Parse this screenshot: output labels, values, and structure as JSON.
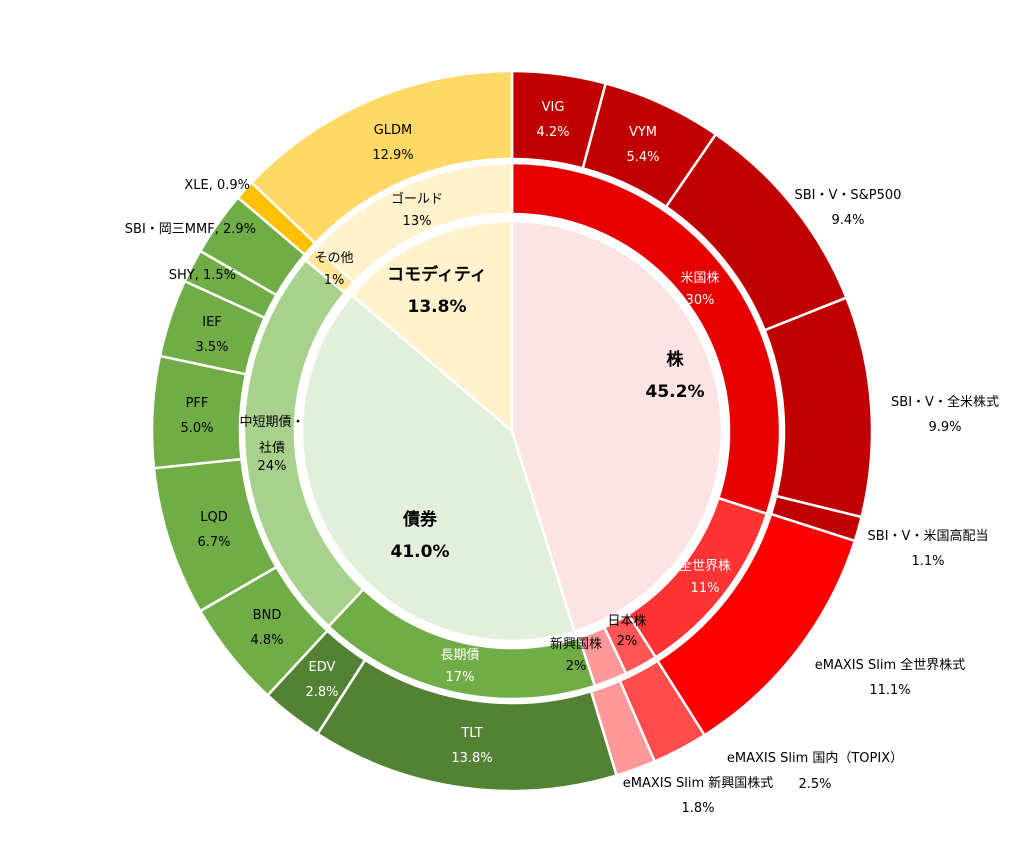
{
  "chart_data": {
    "type": "sunburst-donut",
    "title": "",
    "rings": {
      "inner": [
        {
          "name": "株",
          "value": 45.2,
          "label": "45.2%",
          "color": "#fde4e4",
          "text_color": "#000000"
        },
        {
          "name": "債券",
          "value": 41.0,
          "label": "41.0%",
          "color": "#e2efda",
          "text_color": "#000000"
        },
        {
          "name": "コモディティ",
          "value": 13.8,
          "label": "13.8%",
          "color": "#fff2cc",
          "text_color": "#000000"
        }
      ],
      "middle": [
        {
          "name": "米国株",
          "value": 30,
          "label": "30%",
          "color": "#e60000",
          "text_color": "#ffffff"
        },
        {
          "name": "全世界株",
          "value": 11,
          "label": "11%",
          "color": "#ff3333",
          "text_color": "#ffffff"
        },
        {
          "name": "日本株",
          "value": 2,
          "label": "2%",
          "color": "#ff5555",
          "text_color": "#000000"
        },
        {
          "name": "新興国株",
          "value": 2,
          "label": "2%",
          "color": "#ff9999",
          "text_color": "#000000"
        },
        {
          "name": "長期債",
          "value": 17,
          "label": "17%",
          "color": "#70ad47",
          "text_color": "#ffffff"
        },
        {
          "name": "中短期債・社債",
          "lines": [
            "中短期債・",
            "社債"
          ],
          "value": 24,
          "label": "24%",
          "color": "#a9d18e",
          "text_color": "#000000"
        },
        {
          "name": "その他",
          "value": 1,
          "label": "1%",
          "color": "#ffe699",
          "text_color": "#000000"
        },
        {
          "name": "ゴールド",
          "value": 13,
          "label": "13%",
          "color": "#fff2cc",
          "text_color": "#000000"
        }
      ],
      "outer": [
        {
          "name": "VIG",
          "value": 4.2,
          "label": "4.2%",
          "color": "#c00000"
        },
        {
          "name": "VYM",
          "value": 5.4,
          "label": "5.4%",
          "color": "#c00000"
        },
        {
          "name": "SBI・V・S&P500",
          "value": 9.4,
          "label": "9.4%",
          "color": "#c00000"
        },
        {
          "name": "SBI・V・全米株式",
          "value": 9.9,
          "label": "9.9%",
          "color": "#c00000"
        },
        {
          "name": "SBI・V・米国高配当",
          "value": 1.1,
          "label": "1.1%",
          "color": "#c00000"
        },
        {
          "name": "eMAXIS Slim 全世界株式",
          "value": 11.1,
          "label": "11.1%",
          "color": "#ff0000"
        },
        {
          "name": "eMAXIS Slim 国内（TOPIX）",
          "value": 2.5,
          "label": "2.5%",
          "color": "#ff4d4d"
        },
        {
          "name": "eMAXIS Slim 新興国株式",
          "value": 1.8,
          "label": "1.8%",
          "color": "#ff9999"
        },
        {
          "name": "TLT",
          "value": 13.8,
          "label": "13.8%",
          "color": "#548235"
        },
        {
          "name": "EDV",
          "value": 2.8,
          "label": "2.8%",
          "color": "#548235"
        },
        {
          "name": "BND",
          "value": 4.8,
          "label": "4.8%",
          "color": "#70ad47"
        },
        {
          "name": "LQD",
          "value": 6.7,
          "label": "6.7%",
          "color": "#70ad47"
        },
        {
          "name": "PFF",
          "value": 5.0,
          "label": "5.0%",
          "color": "#70ad47"
        },
        {
          "name": "IEF",
          "value": 3.5,
          "label": "3.5%",
          "color": "#70ad47"
        },
        {
          "name": "SHY",
          "value": 1.5,
          "label": "SHY, 1.5%",
          "color": "#70ad47"
        },
        {
          "name": "SBI・岡三MMF",
          "value": 2.9,
          "label": "SBI・岡三MMF, 2.9%",
          "color": "#70ad47"
        },
        {
          "name": "XLE",
          "value": 0.9,
          "label": "XLE, 0.9%",
          "color": "#ffc000"
        },
        {
          "name": "GLDM",
          "value": 12.9,
          "label": "12.9%",
          "color": "#ffd966"
        }
      ]
    }
  }
}
